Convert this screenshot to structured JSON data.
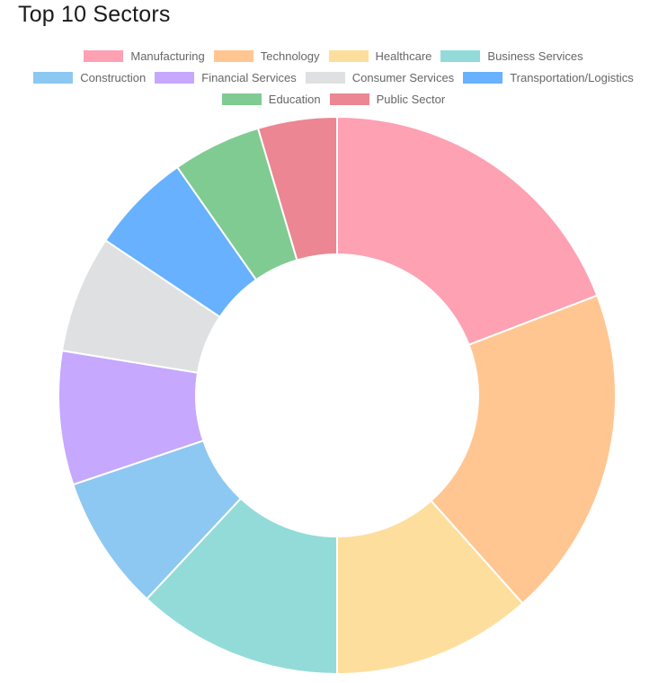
{
  "chart_data": {
    "type": "pie",
    "variant": "doughnut",
    "title": "Top 10 Sectors",
    "legend_position": "top",
    "categories": [
      "Manufacturing",
      "Technology",
      "Healthcare",
      "Business Services",
      "Construction",
      "Financial Services",
      "Consumer Services",
      "Transportation/Logistics",
      "Education",
      "Public Sector"
    ],
    "values": [
      20.5,
      20.6,
      12.4,
      12.8,
      8.4,
      8.3,
      7.3,
      6.3,
      5.5,
      4.9
    ],
    "colors": [
      "#FDA1B3",
      "#FFC692",
      "#FDDE9D",
      "#92DBD8",
      "#8CC8F1",
      "#C6A8FE",
      "#DFE0E2",
      "#67B1FE",
      "#80CB92",
      "#EB8692"
    ]
  }
}
